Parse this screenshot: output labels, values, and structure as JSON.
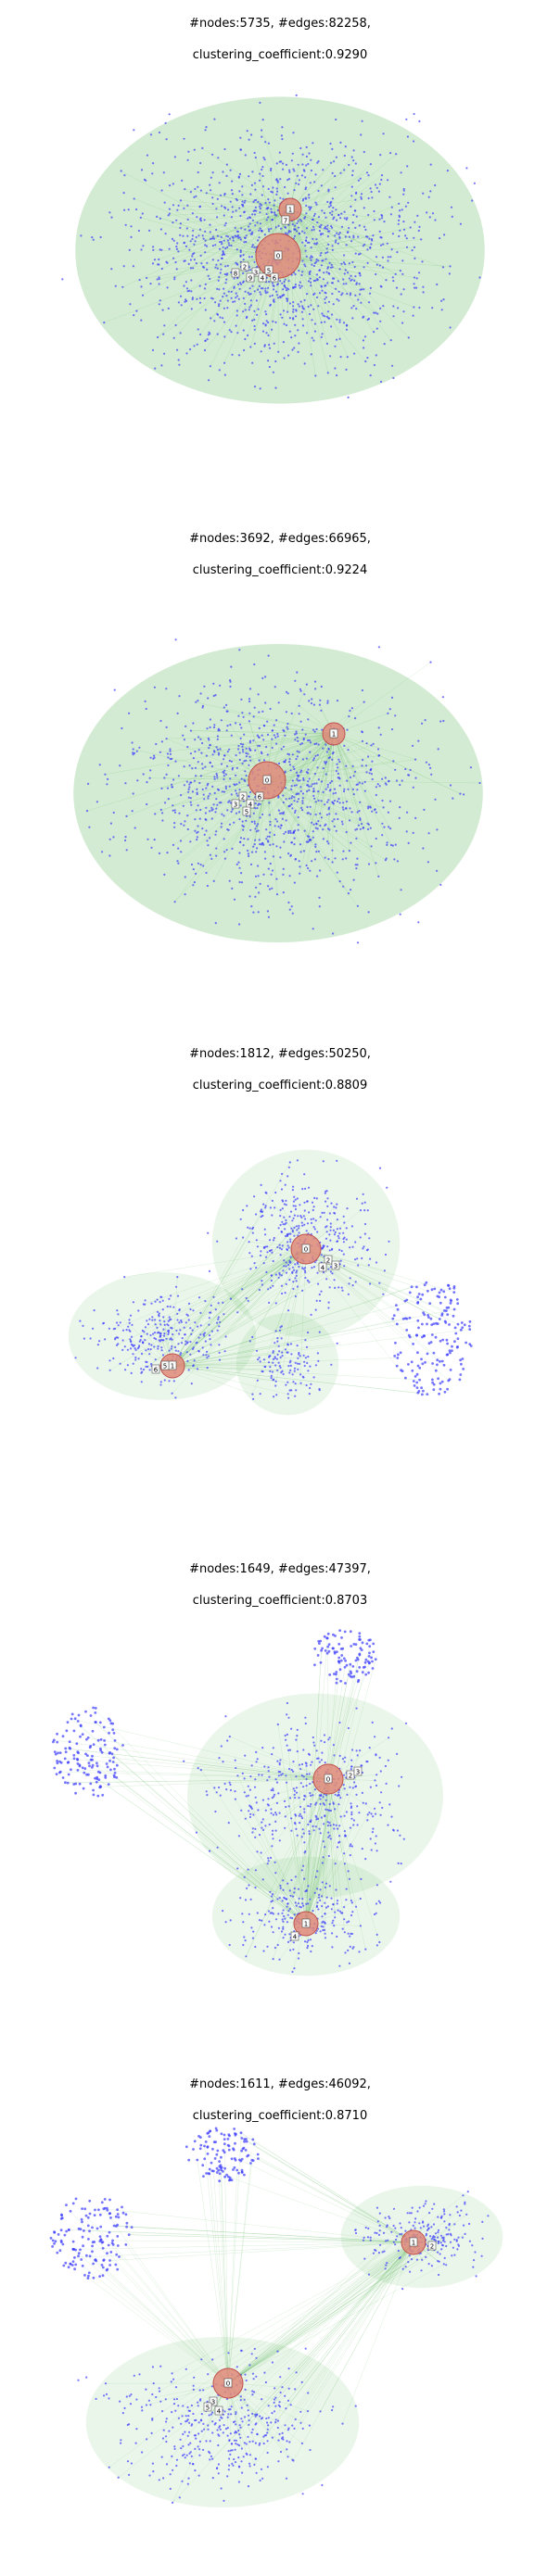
{
  "colors": {
    "node": "#3b3bff",
    "edge": "#5cb85c",
    "hub": "#c0504d",
    "hub_fill": "#e08a7a",
    "label_box": "#ffffff"
  },
  "graphs": [
    {
      "title_line1": "#nodes:5735, #edges:82258,",
      "title_line2": "clustering_coefficient:0.9290",
      "hub_labels": [
        "0",
        "1",
        "2",
        "3",
        "4",
        "5",
        "6",
        "7",
        "8",
        "9"
      ]
    },
    {
      "title_line1": "#nodes:3692, #edges:66965,",
      "title_line2": "clustering_coefficient:0.9224",
      "hub_labels": [
        "0",
        "1",
        "2",
        "3",
        "4",
        "5",
        "6"
      ]
    },
    {
      "title_line1": "#nodes:1812, #edges:50250,",
      "title_line2": "clustering_coefficient:0.8809",
      "hub_labels": [
        "0",
        "1",
        "2",
        "3",
        "4",
        "5",
        "6"
      ]
    },
    {
      "title_line1": "#nodes:1649, #edges:47397,",
      "title_line2": "clustering_coefficient:0.8703",
      "hub_labels": [
        "0",
        "1",
        "2",
        "3",
        "4"
      ]
    },
    {
      "title_line1": "#nodes:1611, #edges:46092,",
      "title_line2": "clustering_coefficient:0.8710",
      "hub_labels": [
        "0",
        "1",
        "2",
        "3",
        "4",
        "5"
      ]
    }
  ]
}
